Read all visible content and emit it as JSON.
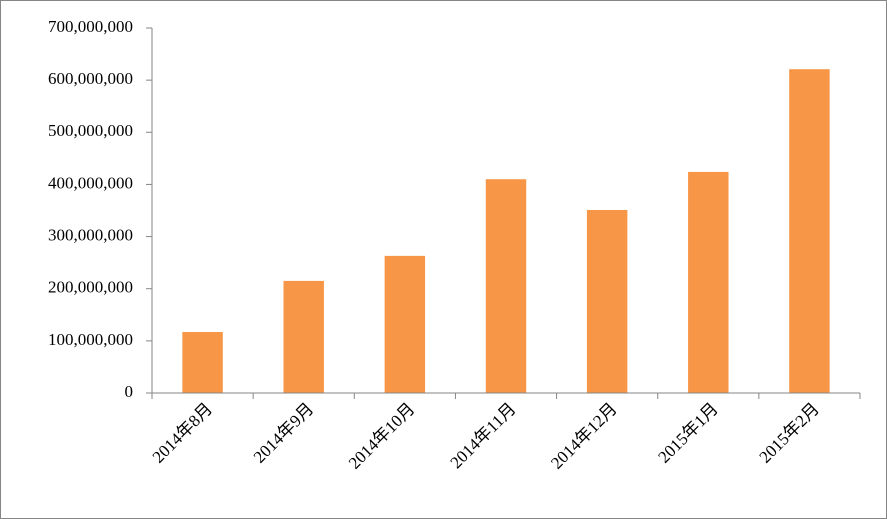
{
  "chart_data": {
    "type": "bar",
    "categories": [
      "2014年8月",
      "2014年9月",
      "2014年10月",
      "2014年11月",
      "2014年12月",
      "2015年1月",
      "2015年2月"
    ],
    "values": [
      117000000,
      215000000,
      263000000,
      410000000,
      351000000,
      424000000,
      621000000
    ],
    "color": "#f79646",
    "ylim": [
      0,
      700000000
    ],
    "yticks": [
      0,
      {
        "value": 100000000,
        "label": "100,000,000"
      },
      {
        "value": 200000000,
        "label": "200,000,000"
      },
      {
        "value": 300000000,
        "label": "300,000,000"
      },
      {
        "value": 400000000,
        "label": "400,000,000"
      },
      {
        "value": 500000000,
        "label": "500,000,000"
      },
      {
        "value": 600000000,
        "label": "600,000,000"
      },
      {
        "value": 700000000,
        "label": "700,000,000"
      }
    ],
    "grid": false
  }
}
